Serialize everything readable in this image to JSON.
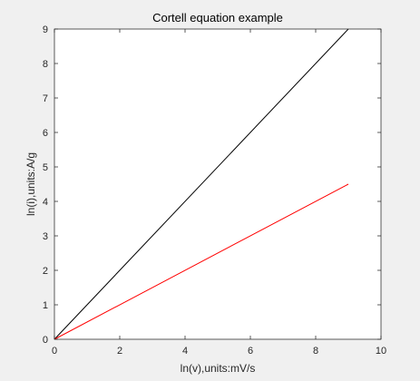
{
  "chart_data": {
    "type": "line",
    "title": "Cortell equation example",
    "xlabel": "ln(v),units:mV/s",
    "ylabel": "ln(i),units:A/g",
    "xlim": [
      0,
      10
    ],
    "ylim": [
      0,
      9
    ],
    "xticks": [
      0,
      2,
      4,
      6,
      8,
      10
    ],
    "yticks": [
      0,
      1,
      2,
      3,
      4,
      5,
      6,
      7,
      8,
      9
    ],
    "grid": false,
    "series": [
      {
        "color": "#000000",
        "x": [
          0,
          9
        ],
        "y": [
          0,
          9
        ]
      },
      {
        "color": "#ff0000",
        "x": [
          0,
          9
        ],
        "y": [
          0,
          4.5
        ]
      }
    ]
  }
}
